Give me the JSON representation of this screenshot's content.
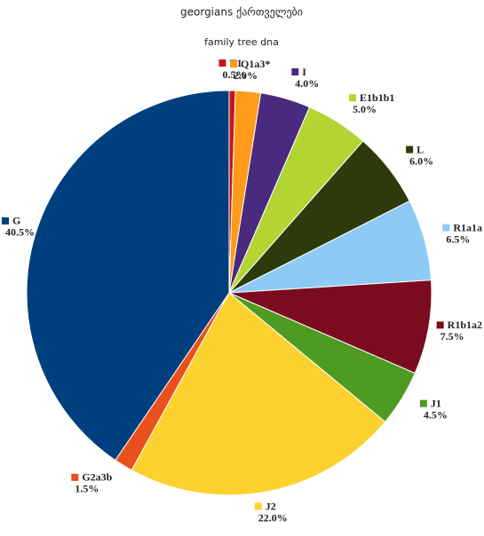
{
  "chart_data": {
    "type": "pie",
    "title": "georgians ქართველები",
    "subtitle": "family tree dna",
    "categories": [
      "T1",
      "Q1a3*",
      "I",
      "E1b1b1",
      "L",
      "R1a1a",
      "R1b1a2",
      "J1",
      "J2",
      "G2a3b",
      "G"
    ],
    "values": [
      0.5,
      2.0,
      4.0,
      5.0,
      6.0,
      6.5,
      7.5,
      4.5,
      22.0,
      1.5,
      40.5
    ],
    "value_labels": [
      "0.5%",
      "2.0%",
      "4.0%",
      "5.0%",
      "6.0%",
      "6.5%",
      "7.5%",
      "4.5%",
      "22.0%",
      "1.5%",
      "40.5%"
    ],
    "colors": [
      "#c5161d",
      "#ff9a1a",
      "#4a2a7e",
      "#b3d433",
      "#2e3a0b",
      "#8ccbf6",
      "#7b0b1f",
      "#4f9b21",
      "#fdd22f",
      "#e9501b",
      "#003f7f"
    ]
  }
}
